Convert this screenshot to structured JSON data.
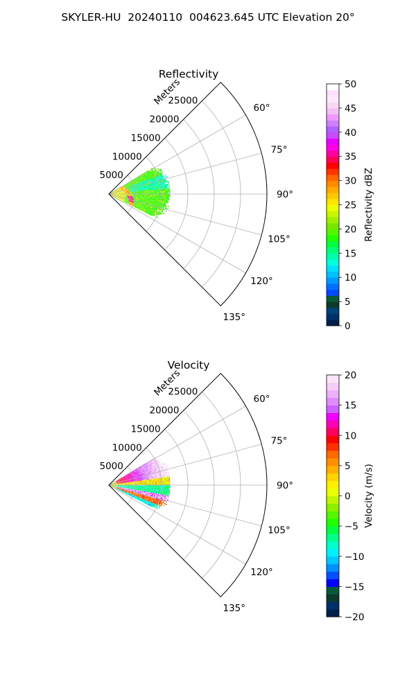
{
  "figure": {
    "title": "SKYLER-HU  20240110  004623.645 UTC Elevation 20°"
  },
  "chart_data": [
    {
      "type": "heatmap",
      "projection": "polar-sector",
      "title": "Reflectivity",
      "range_label": "Meters",
      "range_ticks": [
        5000,
        10000,
        15000,
        20000,
        25000
      ],
      "range_tick_labels": [
        "5000",
        "10000",
        "15000",
        "20000",
        "25000"
      ],
      "rlim": [
        0,
        30000
      ],
      "theta_range_deg": [
        45,
        135
      ],
      "theta_ticks": [
        60,
        75,
        90,
        105,
        120,
        135
      ],
      "theta_tick_labels": [
        "60°",
        "75°",
        "90°",
        "105°",
        "120°",
        "135°"
      ],
      "grid": true,
      "data_extent": {
        "azimuth_deg": [
          58,
          118
        ],
        "range_m": [
          0,
          11500
        ]
      },
      "colorbar": {
        "label": "Reflectivity dBZ",
        "vmin": 0,
        "vmax": 50,
        "ticks": [
          0,
          5,
          10,
          15,
          20,
          25,
          30,
          35,
          40,
          45,
          50
        ],
        "tick_labels": [
          "0",
          "5",
          "10",
          "15",
          "20",
          "25",
          "30",
          "35",
          "40",
          "45",
          "50"
        ],
        "colors": [
          "#00204c",
          "#00306a",
          "#00427a",
          "#0d3a2a",
          "#0a5a3a",
          "#004aff",
          "#0070ff",
          "#0099ff",
          "#00bfff",
          "#00e0ff",
          "#00ffdd",
          "#00ffaa",
          "#00ff77",
          "#00ff40",
          "#20ff00",
          "#55f500",
          "#7ae600",
          "#9ef000",
          "#c8f500",
          "#eaff00",
          "#ffe600",
          "#ffc800",
          "#ffaa00",
          "#ff8a00",
          "#ff6600",
          "#ff3300",
          "#ff0000",
          "#ff0055",
          "#ff00a0",
          "#ff00e6",
          "#e600ff",
          "#c84aff",
          "#b060ff",
          "#d080ff",
          "#ee99ff",
          "#f4bff4",
          "#fad8f5",
          "#fde8fb",
          "#ffe0ff",
          "#ffffff"
        ]
      }
    },
    {
      "type": "heatmap",
      "projection": "polar-sector",
      "title": "Velocity",
      "range_label": "Meters",
      "range_ticks": [
        5000,
        10000,
        15000,
        20000,
        25000
      ],
      "range_tick_labels": [
        "5000",
        "10000",
        "15000",
        "20000",
        "25000"
      ],
      "rlim": [
        0,
        30000
      ],
      "theta_range_deg": [
        45,
        135
      ],
      "theta_ticks": [
        60,
        75,
        90,
        105,
        120,
        135
      ],
      "theta_tick_labels": [
        "60°",
        "75°",
        "90°",
        "105°",
        "120°",
        "135°"
      ],
      "grid": true,
      "data_extent": {
        "azimuth_deg": [
          58,
          118
        ],
        "range_m": [
          0,
          11500
        ]
      },
      "colorbar": {
        "label": "Velocity (m/s)",
        "vmin": -20,
        "vmax": 20,
        "ticks": [
          -20,
          -15,
          -10,
          -5,
          0,
          5,
          10,
          15,
          20
        ],
        "tick_labels": [
          "−20",
          "−15",
          "−10",
          "−5",
          "0",
          "5",
          "10",
          "15",
          "20"
        ],
        "colors": [
          "#00204c",
          "#00306a",
          "#0d3a2a",
          "#0a5a3a",
          "#0000ff",
          "#0050ff",
          "#0090ff",
          "#00c8ff",
          "#00f0ff",
          "#00ffcc",
          "#00ff88",
          "#00ff40",
          "#20ff00",
          "#55f500",
          "#8cf000",
          "#c0f500",
          "#eaff00",
          "#fff000",
          "#ffd200",
          "#ffb000",
          "#ff9000",
          "#ff6a00",
          "#ff3000",
          "#ff0000",
          "#ff0060",
          "#ff00b4",
          "#f000ff",
          "#d060ff",
          "#e08cff",
          "#eeb0ff",
          "#f6cdf6",
          "#fbe3fa"
        ]
      }
    }
  ]
}
